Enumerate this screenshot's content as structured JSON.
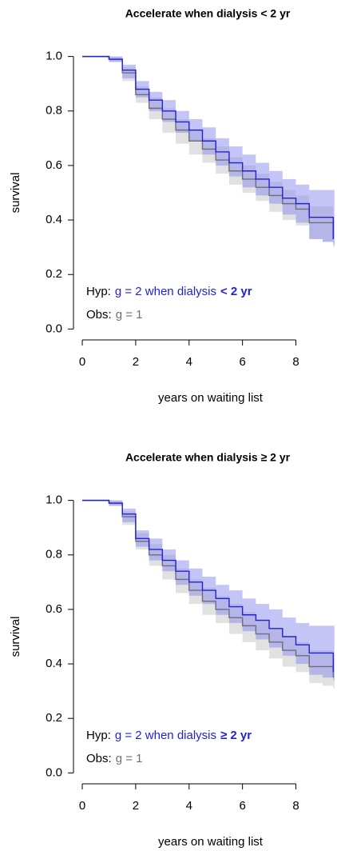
{
  "chart_data": [
    {
      "type": "step",
      "title": "Accelerate when dialysis < 2 yr",
      "x_label": "years on waiting list",
      "y_label": "survival",
      "xlim": [
        -0.33,
        9.45
      ],
      "ylim": [
        -0.04,
        1.04
      ],
      "xticks": [
        0,
        2,
        4,
        6,
        8
      ],
      "yticks": [
        {
          "value": 0,
          "label": "0.0"
        },
        {
          "value": 0.2,
          "label": "0.2"
        },
        {
          "value": 0.4,
          "label": "0.4"
        },
        {
          "value": 0.6,
          "label": "0.6"
        },
        {
          "value": 0.8,
          "label": "0.8"
        },
        {
          "value": 1,
          "label": "1.0"
        }
      ],
      "grid": false,
      "x": [
        0,
        0.5,
        1.0,
        1.5,
        2.0,
        2.5,
        3.0,
        3.5,
        4.0,
        4.5,
        5.0,
        5.5,
        6.0,
        6.5,
        7.0,
        7.5,
        8.0,
        8.5,
        9.0,
        9.4
      ],
      "series": [
        {
          "name": "Obs:",
          "legend_text": "g = 1",
          "color": "#6e6e7c",
          "band_color": "#bdbdbd",
          "values": [
            1.0,
            1.0,
            0.99,
            0.94,
            0.86,
            0.81,
            0.77,
            0.73,
            0.69,
            0.66,
            0.62,
            0.58,
            0.55,
            0.52,
            0.49,
            0.46,
            0.44,
            0.39,
            0.39,
            0.33
          ],
          "upper": [
            1.0,
            1.0,
            1.0,
            0.96,
            0.89,
            0.85,
            0.81,
            0.77,
            0.73,
            0.7,
            0.67,
            0.63,
            0.6,
            0.57,
            0.54,
            0.51,
            0.49,
            0.45,
            0.45,
            0.4
          ],
          "lower": [
            1.0,
            1.0,
            0.98,
            0.91,
            0.83,
            0.77,
            0.72,
            0.68,
            0.64,
            0.61,
            0.57,
            0.53,
            0.5,
            0.47,
            0.43,
            0.4,
            0.38,
            0.33,
            0.32,
            0.3
          ]
        },
        {
          "name": "Hyp:",
          "legend_text": "g = 2 when dialysis",
          "legend_emphasis": "< 2 yr",
          "color": "#2222d4",
          "band_color": "#8a8af0",
          "values": [
            1.0,
            1.0,
            0.99,
            0.95,
            0.88,
            0.84,
            0.8,
            0.76,
            0.73,
            0.69,
            0.65,
            0.61,
            0.58,
            0.55,
            0.52,
            0.48,
            0.46,
            0.41,
            0.41,
            0.33
          ],
          "upper": [
            1.0,
            1.0,
            1.0,
            0.97,
            0.91,
            0.87,
            0.84,
            0.8,
            0.77,
            0.74,
            0.7,
            0.67,
            0.64,
            0.61,
            0.58,
            0.55,
            0.53,
            0.51,
            0.51,
            0.51
          ],
          "lower": [
            1.0,
            1.0,
            0.98,
            0.92,
            0.85,
            0.8,
            0.76,
            0.72,
            0.69,
            0.64,
            0.6,
            0.56,
            0.52,
            0.49,
            0.46,
            0.42,
            0.39,
            0.33,
            0.32,
            0.31
          ]
        }
      ]
    },
    {
      "type": "step",
      "title": "Accelerate when dialysis ≥ 2 yr",
      "x_label": "years on waiting list",
      "y_label": "survival",
      "xlim": [
        -0.33,
        9.45
      ],
      "ylim": [
        -0.04,
        1.04
      ],
      "xticks": [
        0,
        2,
        4,
        6,
        8
      ],
      "yticks": [
        {
          "value": 0,
          "label": "0.0"
        },
        {
          "value": 0.2,
          "label": "0.2"
        },
        {
          "value": 0.4,
          "label": "0.4"
        },
        {
          "value": 0.6,
          "label": "0.6"
        },
        {
          "value": 0.8,
          "label": "0.8"
        },
        {
          "value": 1,
          "label": "1.0"
        }
      ],
      "grid": false,
      "x": [
        0,
        0.5,
        1.0,
        1.5,
        2.0,
        2.5,
        3.0,
        3.5,
        4.0,
        4.5,
        5.0,
        5.5,
        6.0,
        6.5,
        7.0,
        7.5,
        8.0,
        8.5,
        9.0,
        9.4
      ],
      "series": [
        {
          "name": "Obs:",
          "legend_text": "g = 1",
          "color": "#6e6e7c",
          "band_color": "#bdbdbd",
          "values": [
            1.0,
            1.0,
            0.99,
            0.94,
            0.85,
            0.8,
            0.76,
            0.71,
            0.67,
            0.63,
            0.6,
            0.57,
            0.54,
            0.51,
            0.48,
            0.45,
            0.43,
            0.39,
            0.39,
            0.35
          ],
          "upper": [
            1.0,
            1.0,
            1.0,
            0.96,
            0.88,
            0.84,
            0.8,
            0.75,
            0.71,
            0.68,
            0.65,
            0.62,
            0.59,
            0.56,
            0.53,
            0.5,
            0.48,
            0.45,
            0.45,
            0.42
          ],
          "lower": [
            1.0,
            1.0,
            0.98,
            0.91,
            0.82,
            0.76,
            0.71,
            0.66,
            0.62,
            0.58,
            0.55,
            0.51,
            0.48,
            0.45,
            0.42,
            0.39,
            0.37,
            0.33,
            0.32,
            0.31
          ]
        },
        {
          "name": "Hyp:",
          "legend_text": "g = 2 when dialysis",
          "legend_emphasis": "≥ 2 yr",
          "color": "#2222d4",
          "band_color": "#8a8af0",
          "values": [
            1.0,
            1.0,
            0.99,
            0.95,
            0.86,
            0.82,
            0.78,
            0.74,
            0.7,
            0.67,
            0.64,
            0.61,
            0.58,
            0.56,
            0.53,
            0.5,
            0.47,
            0.44,
            0.44,
            0.37
          ],
          "upper": [
            1.0,
            1.0,
            1.0,
            0.97,
            0.89,
            0.86,
            0.82,
            0.78,
            0.75,
            0.72,
            0.69,
            0.67,
            0.64,
            0.62,
            0.6,
            0.57,
            0.55,
            0.54,
            0.54,
            0.54
          ],
          "lower": [
            1.0,
            1.0,
            0.98,
            0.92,
            0.83,
            0.78,
            0.74,
            0.69,
            0.65,
            0.62,
            0.58,
            0.55,
            0.52,
            0.49,
            0.46,
            0.43,
            0.4,
            0.36,
            0.35,
            0.34
          ]
        }
      ]
    }
  ]
}
